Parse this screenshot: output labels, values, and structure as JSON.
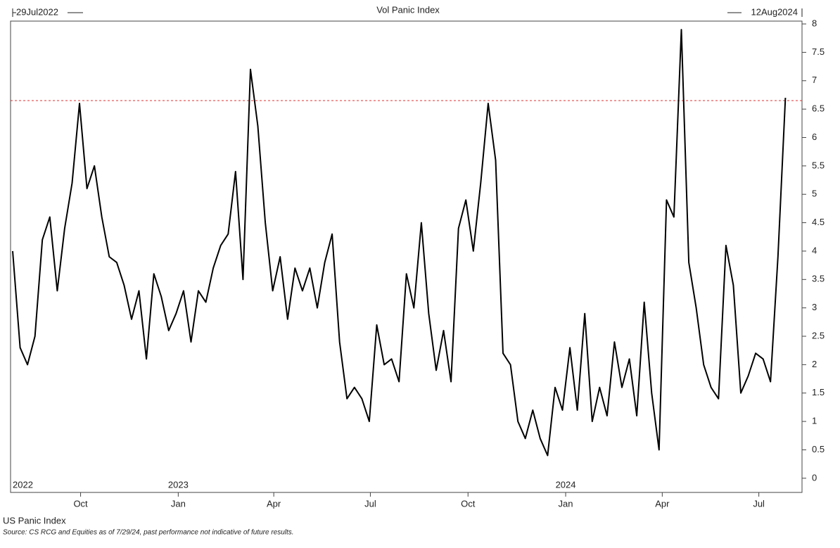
{
  "chart_data": {
    "type": "line",
    "title": "Vol Panic Index",
    "source": "Source: CS RCG and Equities as of 7/29/24, past performance not indicative of future results.",
    "xlim": [
      {
        "value": "2022-07-29",
        "label": "29Jul2022"
      },
      {
        "value": "2024-08-12",
        "label": "12Aug2024"
      }
    ],
    "xticks": [
      {
        "value": "2022-10-01",
        "label": "Oct"
      },
      {
        "value": "2023-01-01",
        "label": "Jan"
      },
      {
        "value": "2023-04-01",
        "label": "Apr"
      },
      {
        "value": "2023-07-01",
        "label": "Jul"
      },
      {
        "value": "2023-10-01",
        "label": "Oct"
      },
      {
        "value": "2024-01-01",
        "label": "Jan"
      },
      {
        "value": "2024-04-01",
        "label": "Apr"
      },
      {
        "value": "2024-07-01",
        "label": "Jul"
      }
    ],
    "year_labels": [
      {
        "value": "2022-07-29",
        "label": "2022"
      },
      {
        "value": "2023-01-01",
        "label": "2023"
      },
      {
        "value": "2024-01-01",
        "label": "2024"
      }
    ],
    "ylim": [
      -0.25,
      8.05
    ],
    "yticks": [
      0,
      0.5,
      1,
      1.5,
      2,
      2.5,
      3,
      3.5,
      4,
      4.5,
      5,
      5.5,
      6,
      6.5,
      7,
      7.5,
      8
    ],
    "reference_line": {
      "value": 6.65,
      "color": "#e03030"
    },
    "x": [
      "2022-07-29",
      "2022-08-05",
      "2022-08-12",
      "2022-08-19",
      "2022-08-26",
      "2022-09-02",
      "2022-09-09",
      "2022-09-16",
      "2022-09-23",
      "2022-09-30",
      "2022-10-07",
      "2022-10-14",
      "2022-10-21",
      "2022-10-28",
      "2022-11-04",
      "2022-11-11",
      "2022-11-18",
      "2022-11-25",
      "2022-12-02",
      "2022-12-09",
      "2022-12-16",
      "2022-12-23",
      "2022-12-30",
      "2023-01-06",
      "2023-01-13",
      "2023-01-20",
      "2023-01-27",
      "2023-02-03",
      "2023-02-10",
      "2023-02-17",
      "2023-02-24",
      "2023-03-03",
      "2023-03-10",
      "2023-03-17",
      "2023-03-24",
      "2023-03-31",
      "2023-04-07",
      "2023-04-14",
      "2023-04-21",
      "2023-04-28",
      "2023-05-05",
      "2023-05-12",
      "2023-05-19",
      "2023-05-26",
      "2023-06-02",
      "2023-06-09",
      "2023-06-16",
      "2023-06-23",
      "2023-06-30",
      "2023-07-07",
      "2023-07-14",
      "2023-07-21",
      "2023-07-28",
      "2023-08-04",
      "2023-08-11",
      "2023-08-18",
      "2023-08-25",
      "2023-09-01",
      "2023-09-08",
      "2023-09-15",
      "2023-09-22",
      "2023-09-29",
      "2023-10-06",
      "2023-10-13",
      "2023-10-20",
      "2023-10-27",
      "2023-11-03",
      "2023-11-10",
      "2023-11-17",
      "2023-11-24",
      "2023-12-01",
      "2023-12-08",
      "2023-12-15",
      "2023-12-22",
      "2023-12-29",
      "2024-01-05",
      "2024-01-12",
      "2024-01-19",
      "2024-01-26",
      "2024-02-02",
      "2024-02-09",
      "2024-02-16",
      "2024-02-23",
      "2024-03-01",
      "2024-03-08",
      "2024-03-15",
      "2024-03-22",
      "2024-03-29",
      "2024-04-05",
      "2024-04-12",
      "2024-04-19",
      "2024-04-26",
      "2024-05-03",
      "2024-05-10",
      "2024-05-17",
      "2024-05-24",
      "2024-05-31",
      "2024-06-07",
      "2024-06-14",
      "2024-06-21",
      "2024-06-28",
      "2024-07-05",
      "2024-07-12",
      "2024-07-19",
      "2024-07-26"
    ],
    "series": [
      {
        "name": "US Panic Index",
        "color": "#000000",
        "values": [
          4.0,
          2.3,
          2.0,
          2.5,
          4.2,
          4.6,
          3.3,
          4.4,
          5.2,
          6.6,
          5.1,
          5.5,
          4.6,
          3.9,
          3.8,
          3.4,
          2.8,
          3.3,
          2.1,
          3.6,
          3.2,
          2.6,
          2.9,
          3.3,
          2.4,
          3.3,
          3.1,
          3.7,
          4.1,
          4.3,
          5.4,
          3.5,
          7.2,
          6.2,
          4.5,
          3.3,
          3.9,
          2.8,
          3.7,
          3.3,
          3.7,
          3.0,
          3.8,
          4.3,
          2.4,
          1.4,
          1.6,
          1.4,
          1.0,
          2.7,
          2.0,
          2.1,
          1.7,
          3.6,
          3.0,
          4.5,
          2.9,
          1.9,
          2.6,
          1.7,
          4.4,
          4.9,
          4.0,
          5.2,
          6.6,
          5.6,
          2.2,
          2.0,
          1.0,
          0.7,
          1.2,
          0.7,
          0.4,
          1.6,
          1.2,
          2.3,
          1.2,
          2.9,
          1.0,
          1.6,
          1.1,
          2.4,
          1.6,
          2.1,
          1.1,
          3.1,
          1.5,
          0.5,
          4.9,
          4.6,
          7.9,
          3.8,
          3.0,
          2.0,
          1.6,
          1.4,
          4.1,
          3.4,
          1.5,
          1.8,
          2.2,
          2.1,
          1.7,
          3.9,
          6.7
        ]
      }
    ]
  }
}
